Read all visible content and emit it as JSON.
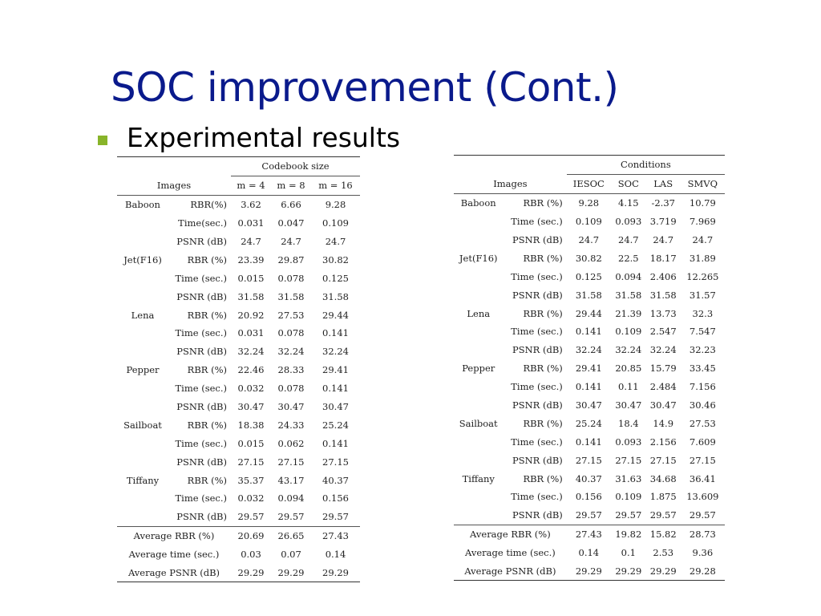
{
  "slide": {
    "title": "SOC improvement (Cont.)",
    "bullet": "Experimental results"
  },
  "table1": {
    "group_header": "Codebook size",
    "images_header": "Images",
    "columns": [
      "m = 4",
      "m = 8",
      "m = 16"
    ],
    "rows": [
      {
        "image": "Baboon",
        "metric": "RBR(%)",
        "values": [
          "3.62",
          "6.66",
          "9.28"
        ]
      },
      {
        "image": "",
        "metric": "Time(sec.)",
        "values": [
          "0.031",
          "0.047",
          "0.109"
        ]
      },
      {
        "image": "",
        "metric": "PSNR (dB)",
        "values": [
          "24.7",
          "24.7",
          "24.7"
        ]
      },
      {
        "image": "Jet(F16)",
        "metric": "RBR (%)",
        "values": [
          "23.39",
          "29.87",
          "30.82"
        ]
      },
      {
        "image": "",
        "metric": "Time (sec.)",
        "values": [
          "0.015",
          "0.078",
          "0.125"
        ]
      },
      {
        "image": "",
        "metric": "PSNR (dB)",
        "values": [
          "31.58",
          "31.58",
          "31.58"
        ]
      },
      {
        "image": "Lena",
        "metric": "RBR (%)",
        "values": [
          "20.92",
          "27.53",
          "29.44"
        ]
      },
      {
        "image": "",
        "metric": "Time (sec.)",
        "values": [
          "0.031",
          "0.078",
          "0.141"
        ]
      },
      {
        "image": "",
        "metric": "PSNR (dB)",
        "values": [
          "32.24",
          "32.24",
          "32.24"
        ]
      },
      {
        "image": "Pepper",
        "metric": "RBR (%)",
        "values": [
          "22.46",
          "28.33",
          "29.41"
        ]
      },
      {
        "image": "",
        "metric": "Time (sec.)",
        "values": [
          "0.032",
          "0.078",
          "0.141"
        ]
      },
      {
        "image": "",
        "metric": "PSNR (dB)",
        "values": [
          "30.47",
          "30.47",
          "30.47"
        ]
      },
      {
        "image": "Sailboat",
        "metric": "RBR (%)",
        "values": [
          "18.38",
          "24.33",
          "25.24"
        ]
      },
      {
        "image": "",
        "metric": "Time (sec.)",
        "values": [
          "0.015",
          "0.062",
          "0.141"
        ]
      },
      {
        "image": "",
        "metric": "PSNR (dB)",
        "values": [
          "27.15",
          "27.15",
          "27.15"
        ]
      },
      {
        "image": "Tiffany",
        "metric": "RBR (%)",
        "values": [
          "35.37",
          "43.17",
          "40.37"
        ]
      },
      {
        "image": "",
        "metric": "Time (sec.)",
        "values": [
          "0.032",
          "0.094",
          "0.156"
        ]
      },
      {
        "image": "",
        "metric": "PSNR (dB)",
        "values": [
          "29.57",
          "29.57",
          "29.57"
        ]
      }
    ],
    "averages": [
      {
        "label": "Average RBR (%)",
        "values": [
          "20.69",
          "26.65",
          "27.43"
        ]
      },
      {
        "label": "Average time (sec.)",
        "values": [
          "0.03",
          "0.07",
          "0.14"
        ]
      },
      {
        "label": "Average PSNR (dB)",
        "values": [
          "29.29",
          "29.29",
          "29.29"
        ]
      }
    ]
  },
  "table2": {
    "group_header": "Conditions",
    "images_header": "Images",
    "columns": [
      "IESOC",
      "SOC",
      "LAS",
      "SMVQ"
    ],
    "rows": [
      {
        "image": "Baboon",
        "metric": "RBR (%)",
        "values": [
          "9.28",
          "4.15",
          "-2.37",
          "10.79"
        ]
      },
      {
        "image": "",
        "metric": "Time (sec.)",
        "values": [
          "0.109",
          "0.093",
          "3.719",
          "7.969"
        ]
      },
      {
        "image": "",
        "metric": "PSNR (dB)",
        "values": [
          "24.7",
          "24.7",
          "24.7",
          "24.7"
        ]
      },
      {
        "image": "Jet(F16)",
        "metric": "RBR (%)",
        "values": [
          "30.82",
          "22.5",
          "18.17",
          "31.89"
        ]
      },
      {
        "image": "",
        "metric": "Time (sec.)",
        "values": [
          "0.125",
          "0.094",
          "2.406",
          "12.265"
        ]
      },
      {
        "image": "",
        "metric": "PSNR (dB)",
        "values": [
          "31.58",
          "31.58",
          "31.58",
          "31.57"
        ]
      },
      {
        "image": "Lena",
        "metric": "RBR (%)",
        "values": [
          "29.44",
          "21.39",
          "13.73",
          "32.3"
        ]
      },
      {
        "image": "",
        "metric": "Time (sec.)",
        "values": [
          "0.141",
          "0.109",
          "2.547",
          "7.547"
        ]
      },
      {
        "image": "",
        "metric": "PSNR (dB)",
        "values": [
          "32.24",
          "32.24",
          "32.24",
          "32.23"
        ]
      },
      {
        "image": "Pepper",
        "metric": "RBR (%)",
        "values": [
          "29.41",
          "20.85",
          "15.79",
          "33.45"
        ]
      },
      {
        "image": "",
        "metric": "Time (sec.)",
        "values": [
          "0.141",
          "0.11",
          "2.484",
          "7.156"
        ]
      },
      {
        "image": "",
        "metric": "PSNR (dB)",
        "values": [
          "30.47",
          "30.47",
          "30.47",
          "30.46"
        ]
      },
      {
        "image": "Sailboat",
        "metric": "RBR (%)",
        "values": [
          "25.24",
          "18.4",
          "14.9",
          "27.53"
        ]
      },
      {
        "image": "",
        "metric": "Time (sec.)",
        "values": [
          "0.141",
          "0.093",
          "2.156",
          "7.609"
        ]
      },
      {
        "image": "",
        "metric": "PSNR (dB)",
        "values": [
          "27.15",
          "27.15",
          "27.15",
          "27.15"
        ]
      },
      {
        "image": "Tiffany",
        "metric": "RBR (%)",
        "values": [
          "40.37",
          "31.63",
          "34.68",
          "36.41"
        ]
      },
      {
        "image": "",
        "metric": "Time (sec.)",
        "values": [
          "0.156",
          "0.109",
          "1.875",
          "13.609"
        ]
      },
      {
        "image": "",
        "metric": "PSNR (dB)",
        "values": [
          "29.57",
          "29.57",
          "29.57",
          "29.57"
        ]
      }
    ],
    "averages": [
      {
        "label": "Average RBR (%)",
        "values": [
          "27.43",
          "19.82",
          "15.82",
          "28.73"
        ]
      },
      {
        "label": "Average time (sec.)",
        "values": [
          "0.14",
          "0.1",
          "2.53",
          "9.36"
        ]
      },
      {
        "label": "Average PSNR (dB)",
        "values": [
          "29.29",
          "29.29",
          "29.29",
          "29.28"
        ]
      }
    ]
  },
  "colors": {
    "title": "#0a1a8c",
    "bullet": "#88b42a"
  }
}
